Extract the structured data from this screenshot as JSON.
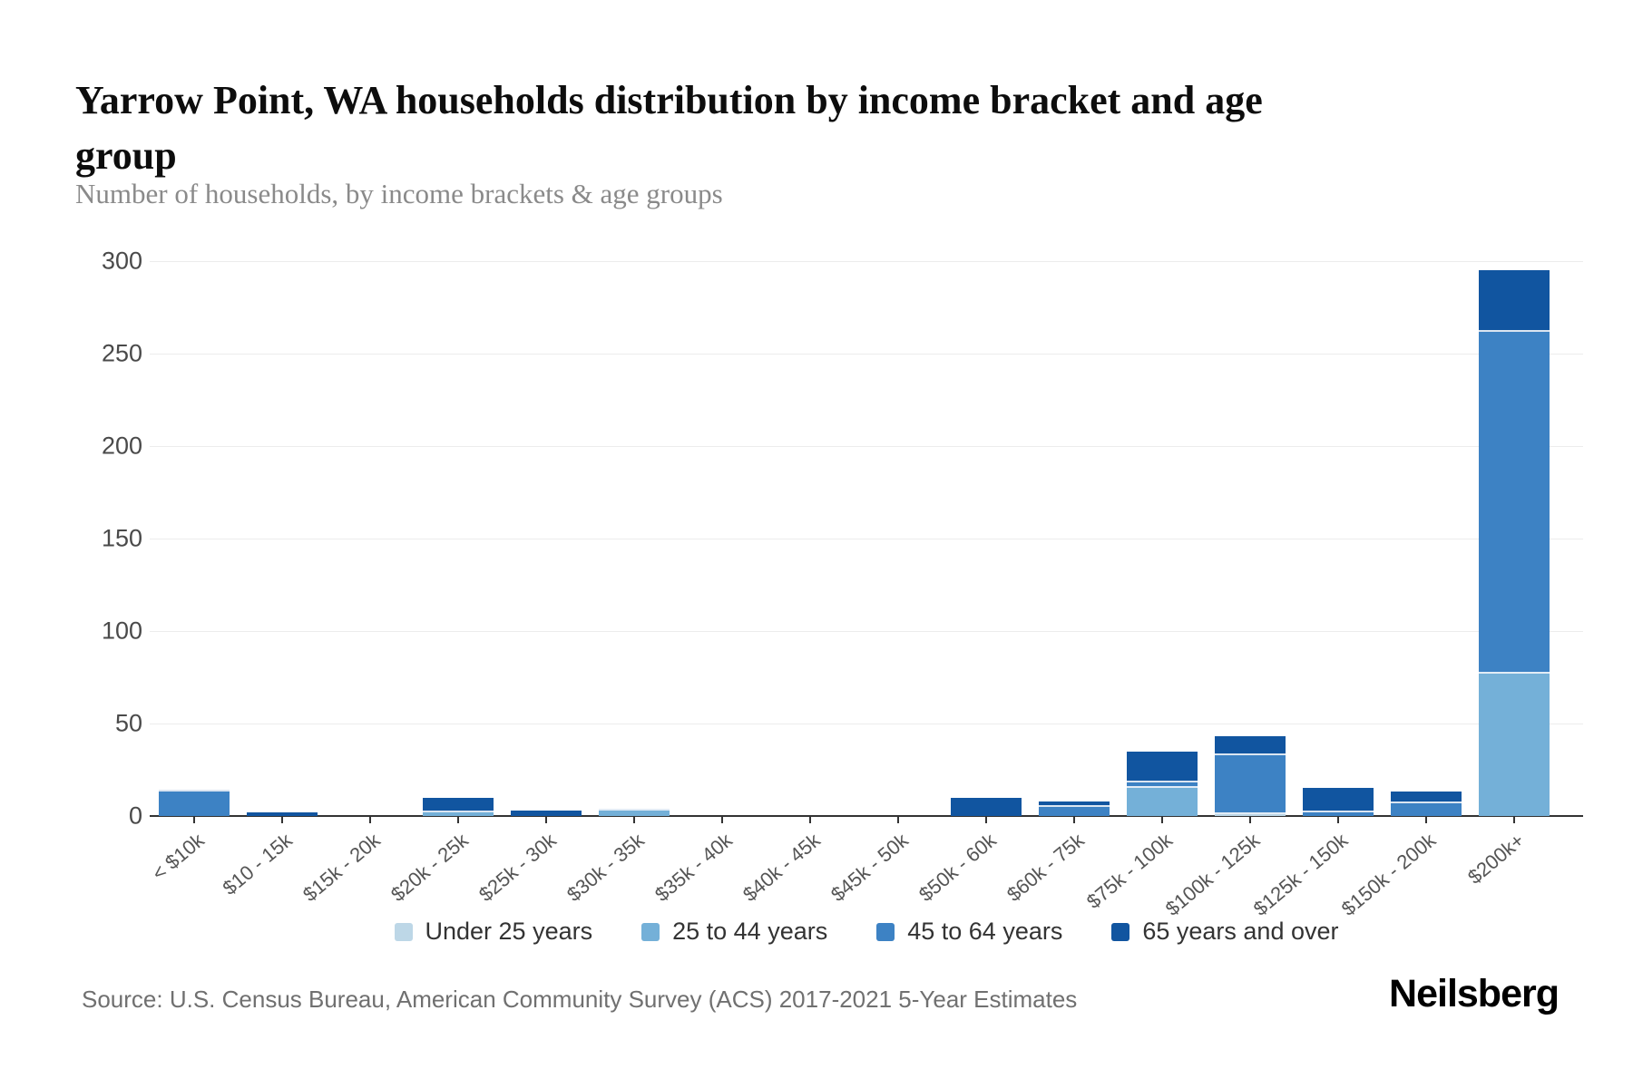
{
  "header": {
    "title": "Yarrow Point, WA households distribution by income bracket and age group",
    "subtitle": "Number of households, by income brackets & age groups"
  },
  "footer": {
    "source": "Source: U.S. Census Bureau, American Community Survey (ACS) 2017-2021 5-Year Estimates",
    "brand": "Neilsberg"
  },
  "colors": {
    "under_25": "#bdd7e7",
    "age_25_44": "#74b0d8",
    "age_45_64": "#3d82c4",
    "age_65_over": "#1155a0",
    "axis_line": "#333333",
    "gridline": "#ececec",
    "y_label": "#4a4a4a",
    "x_label": "#555555",
    "legend_text": "#333333"
  },
  "chart_data": {
    "type": "bar",
    "stacked": true,
    "title": "Yarrow Point, WA households distribution by income bracket and age group",
    "subtitle": "Number of households, by income brackets & age groups",
    "xlabel": "",
    "ylabel": "Number of households",
    "ylim": [
      0,
      300
    ],
    "yticks": [
      0,
      50,
      100,
      150,
      200,
      250,
      300
    ],
    "grid": true,
    "legend_position": "bottom",
    "categories": [
      "< $10k",
      "$10 - 15k",
      "$15k - 20k",
      "$20k - 25k",
      "$25k - 30k",
      "$30k - 35k",
      "$35k - 40k",
      "$40k - 45k",
      "$45k - 50k",
      "$50k - 60k",
      "$60k - 75k",
      "$75k - 100k",
      "$100k - 125k",
      "$125k - 150k",
      "$150k - 200k",
      "$200k+"
    ],
    "series": [
      {
        "name": "Under 25 years",
        "color": "#bdd7e7",
        "values": [
          0,
          0,
          0,
          0,
          0,
          0,
          0,
          0,
          0,
          0,
          0,
          0,
          1,
          0,
          0,
          0
        ]
      },
      {
        "name": "25 to 44 years",
        "color": "#74b0d8",
        "values": [
          0,
          0,
          0,
          2,
          0,
          3,
          0,
          0,
          0,
          0,
          0,
          15,
          0,
          0,
          0,
          77
        ]
      },
      {
        "name": "45 to 64 years",
        "color": "#3d82c4",
        "values": [
          13,
          0,
          0,
          0,
          0,
          1,
          0,
          0,
          0,
          0,
          5,
          3,
          32,
          2,
          7,
          185
        ]
      },
      {
        "name": "65 years and over",
        "color": "#1155a0",
        "values": [
          1,
          2,
          0,
          8,
          3,
          0,
          0,
          0,
          0,
          10,
          3,
          17,
          10,
          13,
          6,
          33
        ]
      }
    ]
  },
  "layout_hints": {
    "note": "stacked vertical bars, white separators between segments, x labels rotated"
  }
}
